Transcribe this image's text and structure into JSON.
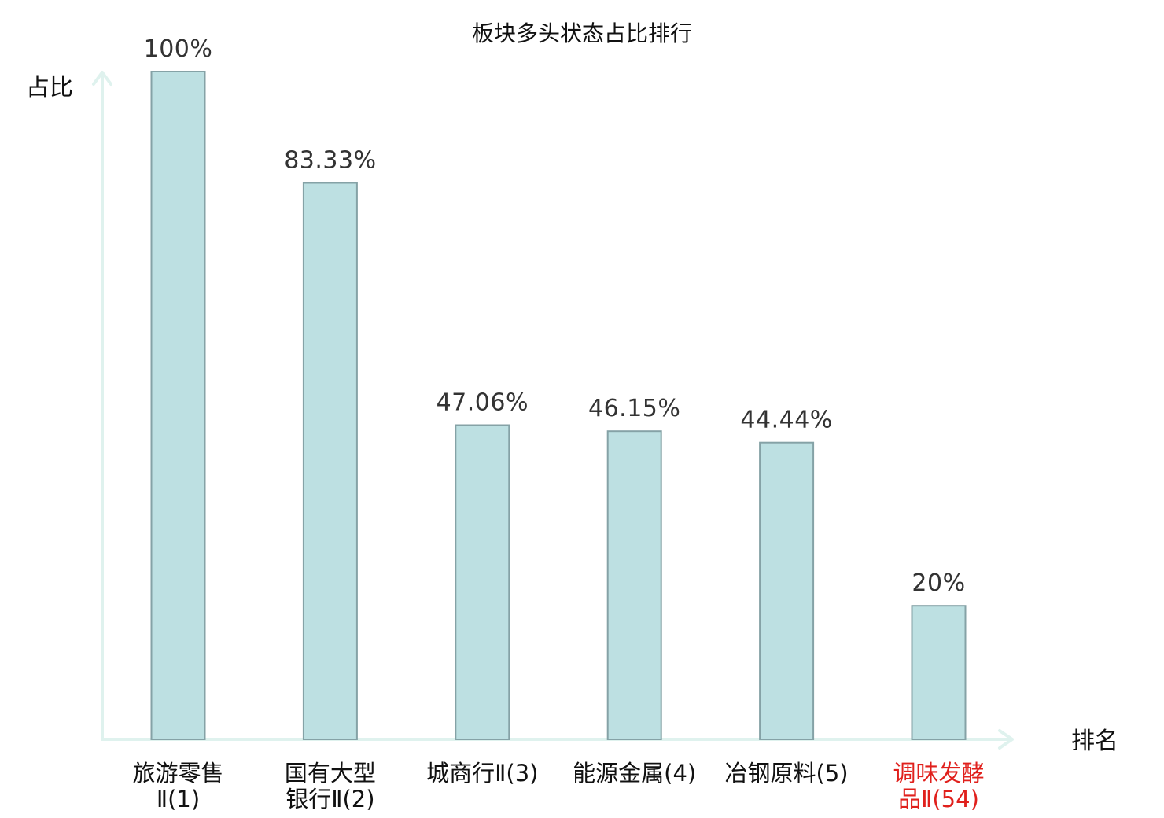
{
  "chart_data": {
    "type": "bar",
    "title": "板块多头状态占比排行",
    "xlabel": "排名",
    "ylabel": "占比",
    "ylim": [
      0,
      100
    ],
    "categories": [
      {
        "lines": [
          "旅游零售",
          "Ⅱ(1)"
        ],
        "highlight": false
      },
      {
        "lines": [
          "国有大型",
          "银行Ⅱ(2)"
        ],
        "highlight": false
      },
      {
        "lines": [
          "城商行Ⅱ(3)"
        ],
        "highlight": false
      },
      {
        "lines": [
          "能源金属(4)"
        ],
        "highlight": false
      },
      {
        "lines": [
          "冶钢原料(5)"
        ],
        "highlight": false
      },
      {
        "lines": [
          "调味发酵",
          "品Ⅱ(54)"
        ],
        "highlight": true
      }
    ],
    "values": [
      100,
      83.33,
      47.06,
      46.15,
      44.44,
      20
    ],
    "value_labels": [
      "100%",
      "83.33%",
      "47.06%",
      "46.15%",
      "44.44%",
      "20%"
    ],
    "grid": false,
    "legend": "none",
    "colors": {
      "bar_fill": "#bde0e2",
      "bar_stroke": "#85a2a6",
      "axis": "#dff2ee",
      "text": "#111111",
      "value_text": "#333333",
      "highlight_text": "#e0201c"
    }
  }
}
